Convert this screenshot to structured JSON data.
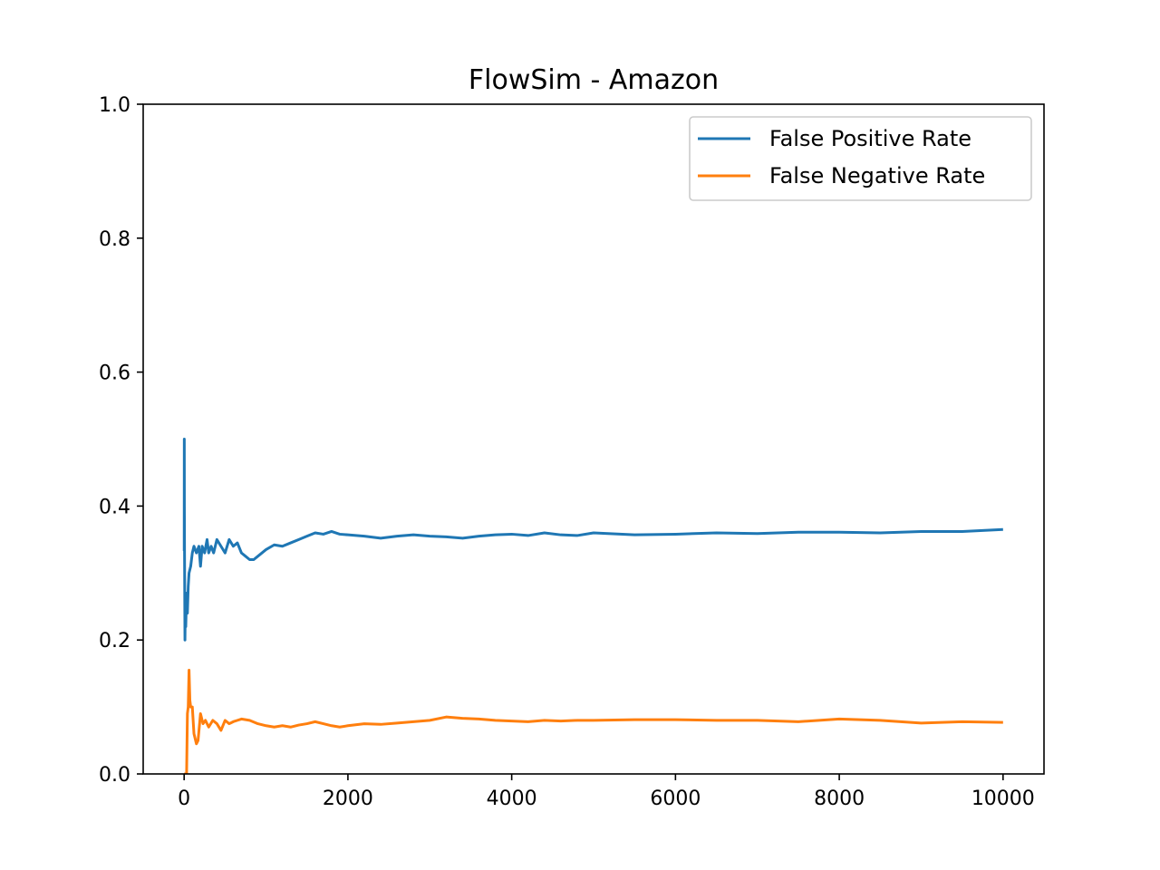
{
  "chart_data": {
    "type": "line",
    "title": "FlowSim - Amazon",
    "xlabel": "",
    "ylabel": "",
    "xlim": [
      -500,
      10500
    ],
    "ylim": [
      0.0,
      1.0
    ],
    "x_ticks": [
      0,
      2000,
      4000,
      6000,
      8000,
      10000
    ],
    "x_tick_labels": [
      "0",
      "2000",
      "4000",
      "6000",
      "8000",
      "10000"
    ],
    "y_ticks": [
      0.0,
      0.2,
      0.4,
      0.6,
      0.8,
      1.0
    ],
    "y_tick_labels": [
      "0.0",
      "0.2",
      "0.4",
      "0.6",
      "0.8",
      "1.0"
    ],
    "grid": false,
    "legend_position": "top-right",
    "series": [
      {
        "name": "False Positive Rate",
        "color": "#1f77b4",
        "x": [
          1,
          2,
          3,
          5,
          8,
          10,
          15,
          20,
          30,
          40,
          50,
          60,
          80,
          100,
          120,
          150,
          180,
          200,
          220,
          250,
          280,
          300,
          330,
          360,
          400,
          450,
          500,
          550,
          600,
          650,
          700,
          750,
          800,
          850,
          900,
          1000,
          1100,
          1200,
          1300,
          1400,
          1500,
          1600,
          1700,
          1800,
          1900,
          2000,
          2200,
          2400,
          2600,
          2800,
          3000,
          3200,
          3400,
          3600,
          3800,
          4000,
          4200,
          4400,
          4600,
          4800,
          5000,
          5500,
          6000,
          6500,
          7000,
          7500,
          8000,
          8500,
          9000,
          9500,
          10000
        ],
        "y": [
          0.333,
          0.5,
          0.4,
          0.33,
          0.25,
          0.2,
          0.26,
          0.22,
          0.27,
          0.24,
          0.28,
          0.3,
          0.31,
          0.33,
          0.34,
          0.33,
          0.34,
          0.31,
          0.34,
          0.33,
          0.35,
          0.33,
          0.34,
          0.33,
          0.35,
          0.34,
          0.33,
          0.35,
          0.34,
          0.345,
          0.33,
          0.325,
          0.32,
          0.32,
          0.325,
          0.335,
          0.342,
          0.34,
          0.345,
          0.35,
          0.355,
          0.36,
          0.358,
          0.362,
          0.358,
          0.357,
          0.355,
          0.352,
          0.355,
          0.357,
          0.355,
          0.354,
          0.352,
          0.355,
          0.357,
          0.358,
          0.356,
          0.36,
          0.357,
          0.356,
          0.36,
          0.357,
          0.358,
          0.36,
          0.359,
          0.361,
          0.361,
          0.36,
          0.362,
          0.362,
          0.365
        ]
      },
      {
        "name": "False Negative Rate",
        "color": "#ff7f0e",
        "x": [
          1,
          5,
          10,
          20,
          30,
          40,
          50,
          60,
          70,
          80,
          100,
          120,
          150,
          170,
          200,
          230,
          260,
          300,
          350,
          400,
          450,
          500,
          550,
          600,
          650,
          700,
          800,
          900,
          1000,
          1100,
          1200,
          1300,
          1400,
          1500,
          1600,
          1700,
          1800,
          1900,
          2000,
          2200,
          2400,
          2600,
          2800,
          3000,
          3200,
          3400,
          3600,
          3800,
          4000,
          4200,
          4400,
          4600,
          4800,
          5000,
          5500,
          6000,
          6500,
          7000,
          7500,
          8000,
          8500,
          9000,
          9500,
          10000
        ],
        "y": [
          0.0,
          0.0,
          0.0,
          0.0,
          0.0,
          0.09,
          0.1,
          0.155,
          0.11,
          0.1,
          0.1,
          0.06,
          0.045,
          0.05,
          0.09,
          0.075,
          0.08,
          0.07,
          0.08,
          0.075,
          0.065,
          0.08,
          0.075,
          0.078,
          0.08,
          0.082,
          0.08,
          0.075,
          0.072,
          0.07,
          0.072,
          0.07,
          0.073,
          0.075,
          0.078,
          0.075,
          0.072,
          0.07,
          0.072,
          0.075,
          0.074,
          0.076,
          0.078,
          0.08,
          0.085,
          0.083,
          0.082,
          0.08,
          0.079,
          0.078,
          0.08,
          0.079,
          0.08,
          0.08,
          0.081,
          0.081,
          0.08,
          0.08,
          0.078,
          0.082,
          0.08,
          0.076,
          0.078,
          0.077
        ]
      }
    ]
  }
}
